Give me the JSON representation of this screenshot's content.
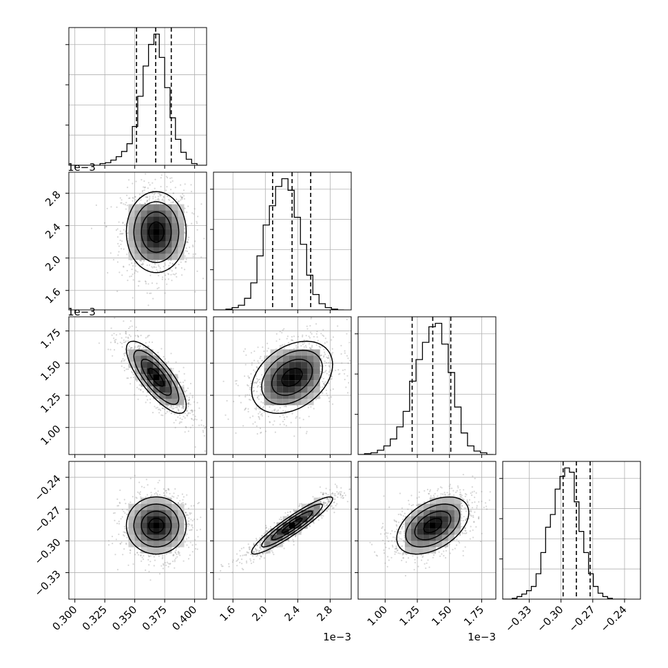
{
  "chart_data": {
    "type": "corner",
    "grid": true,
    "parameters": [
      {
        "axis_range": [
          0.295,
          0.41
        ],
        "ticks": [
          0.3,
          0.325,
          0.35,
          0.375,
          0.4
        ],
        "tick_labels": [
          "0.300",
          "0.325",
          "0.350",
          "0.375",
          "0.400"
        ],
        "offset_text": "",
        "quantiles": [
          0.3515,
          0.3675,
          0.3805
        ],
        "histogram": {
          "bin_edges": [
            0.294,
            0.2985,
            0.303,
            0.3075,
            0.312,
            0.3165,
            0.321,
            0.3255,
            0.33,
            0.3345,
            0.339,
            0.3435,
            0.348,
            0.3525,
            0.357,
            0.3615,
            0.366,
            0.3705,
            0.375,
            0.3795,
            0.384,
            0.3885,
            0.393,
            0.3975,
            0.402,
            0.4065,
            0.411
          ],
          "counts": [
            0,
            0,
            0,
            0,
            0,
            0,
            2,
            3,
            6,
            10,
            16,
            25,
            45,
            80,
            115,
            140,
            152,
            125,
            90,
            55,
            30,
            15,
            7,
            2,
            0,
            0
          ]
        }
      },
      {
        "axis_range": [
          1.36,
          3.06
        ],
        "ticks": [
          1.6,
          2.0,
          2.4,
          2.8
        ],
        "tick_labels": [
          "1.6",
          "2.0",
          "2.4",
          "2.8"
        ],
        "offset_text": "1e−3",
        "quantiles": [
          2.09,
          2.33,
          2.56
        ],
        "histogram": {
          "bin_edges": [
            1.36,
            1.4367,
            1.5133,
            1.59,
            1.6667,
            1.7433,
            1.82,
            1.8967,
            1.9733,
            2.05,
            2.1267,
            2.2033,
            2.28,
            2.3567,
            2.4333,
            2.51,
            2.5867,
            2.6633,
            2.74,
            2.8167,
            2.8933,
            2.97
          ],
          "counts": [
            0,
            0,
            1,
            3,
            6,
            15,
            35,
            70,
            110,
            135,
            160,
            170,
            155,
            120,
            85,
            45,
            20,
            8,
            3,
            1,
            0
          ]
        }
      },
      {
        "axis_range": [
          0.79,
          1.86
        ],
        "ticks": [
          1.0,
          1.25,
          1.5,
          1.75
        ],
        "tick_labels": [
          "1.00",
          "1.25",
          "1.50",
          "1.75"
        ],
        "offset_text": "1e−3",
        "quantiles": [
          1.21,
          1.37,
          1.51
        ],
        "histogram": {
          "bin_edges": [
            0.79,
            0.84,
            0.89,
            0.94,
            0.99,
            1.04,
            1.09,
            1.14,
            1.19,
            1.24,
            1.29,
            1.34,
            1.39,
            1.44,
            1.49,
            1.54,
            1.59,
            1.64,
            1.69,
            1.74,
            1.79,
            1.84
          ],
          "counts": [
            0,
            1,
            2,
            5,
            10,
            18,
            32,
            50,
            85,
            110,
            130,
            148,
            152,
            128,
            95,
            55,
            25,
            10,
            4,
            2,
            0
          ]
        }
      },
      {
        "axis_range": [
          -0.355,
          -0.225
        ],
        "ticks": [
          -0.33,
          -0.3,
          -0.27,
          -0.24
        ],
        "tick_labels": [
          "−0.33",
          "−0.30",
          "−0.27",
          "−0.24"
        ],
        "offset_text": "",
        "quantiles": [
          -0.298,
          -0.2855,
          -0.2725
        ],
        "histogram": {
          "bin_edges": [
            -0.355,
            -0.3505,
            -0.346,
            -0.3415,
            -0.337,
            -0.3325,
            -0.328,
            -0.3235,
            -0.319,
            -0.3145,
            -0.31,
            -0.3055,
            -0.301,
            -0.2965,
            -0.292,
            -0.2875,
            -0.283,
            -0.2785,
            -0.274,
            -0.2695,
            -0.265,
            -0.2605,
            -0.256,
            -0.2515,
            -0.247,
            -0.2425,
            -0.238
          ],
          "counts": [
            0,
            0,
            1,
            3,
            6,
            10,
            15,
            30,
            55,
            85,
            100,
            130,
            145,
            155,
            150,
            115,
            80,
            55,
            30,
            15,
            7,
            3,
            1,
            0,
            0,
            0
          ]
        }
      }
    ],
    "pairs": [
      {
        "row": 1,
        "col": 0,
        "center": [
          0.368,
          2.32
        ],
        "sigma": [
          0.0125,
          0.25
        ],
        "rho": 0.0
      },
      {
        "row": 2,
        "col": 0,
        "center": [
          0.368,
          1.39
        ],
        "sigma": [
          0.0125,
          0.14
        ],
        "rho": -0.78
      },
      {
        "row": 2,
        "col": 1,
        "center": [
          2.33,
          1.39
        ],
        "sigma": [
          0.25,
          0.14
        ],
        "rho": 0.35
      },
      {
        "row": 3,
        "col": 0,
        "center": [
          0.368,
          -0.2855
        ],
        "sigma": [
          0.0125,
          0.0135
        ],
        "rho": 0.0
      },
      {
        "row": 3,
        "col": 1,
        "center": [
          2.33,
          -0.2855
        ],
        "sigma": [
          0.25,
          0.0135
        ],
        "rho": 0.93
      },
      {
        "row": 3,
        "col": 2,
        "center": [
          1.37,
          -0.2855
        ],
        "sigma": [
          0.14,
          0.0135
        ],
        "rho": 0.45
      }
    ]
  }
}
